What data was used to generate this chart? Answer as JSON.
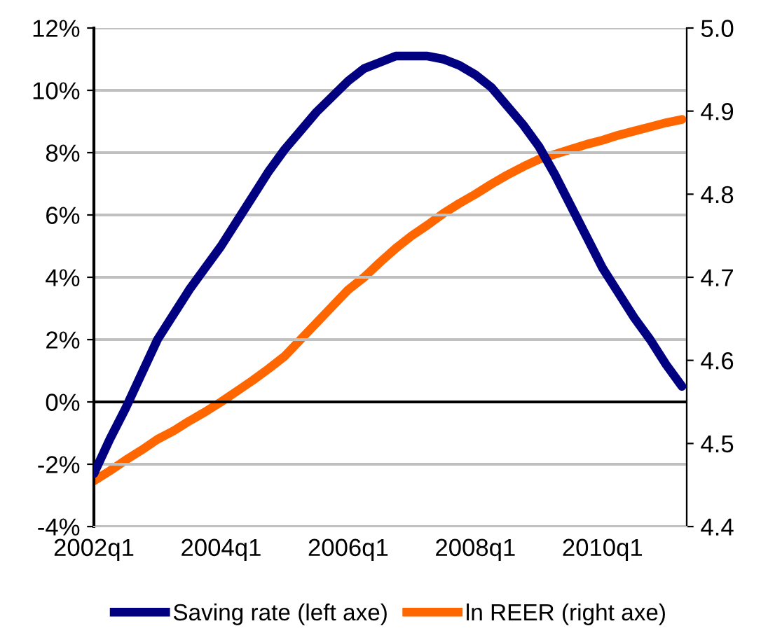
{
  "chart_data": {
    "type": "line",
    "categories": [
      "2002q1",
      null,
      null,
      null,
      null,
      null,
      null,
      null,
      "2004q1",
      null,
      null,
      null,
      null,
      null,
      null,
      null,
      "2006q1",
      null,
      null,
      null,
      null,
      null,
      null,
      null,
      "2008q1",
      null,
      null,
      null,
      null,
      null,
      null,
      null,
      "2010q1",
      null,
      null,
      null,
      null,
      null
    ],
    "series": [
      {
        "name": "Saving rate (left axe)",
        "color": "#000080",
        "values": [
          -2.3,
          -1.2,
          -0.2,
          0.9,
          2.0,
          2.8,
          3.6,
          4.3,
          5.0,
          5.8,
          6.6,
          7.4,
          8.1,
          8.7,
          9.3,
          9.8,
          10.3,
          10.7,
          10.9,
          11.1,
          11.1,
          11.1,
          11.0,
          10.8,
          10.5,
          10.1,
          9.5,
          8.9,
          8.2,
          7.3,
          6.3,
          5.3,
          4.3,
          3.5,
          2.7,
          2.0,
          1.2,
          0.5
        ]
      },
      {
        "name": "ln REER (right axe)",
        "color": "#ff6600",
        "axis": "y2",
        "values": [
          4.455,
          4.467,
          4.48,
          4.492,
          4.505,
          4.515,
          4.527,
          4.538,
          4.55,
          4.563,
          4.576,
          4.59,
          4.605,
          4.625,
          4.645,
          4.665,
          4.685,
          4.7,
          4.718,
          4.735,
          4.75,
          4.763,
          4.777,
          4.789,
          4.8,
          4.812,
          4.823,
          4.833,
          4.842,
          4.848,
          4.854,
          4.86,
          4.865,
          4.871,
          4.876,
          4.881,
          4.886,
          4.89
        ]
      }
    ],
    "ylim": [
      -4,
      12
    ],
    "yticks": [
      {
        "value": -4,
        "label": "-4%"
      },
      {
        "value": -2,
        "label": "-2%"
      },
      {
        "value": 0,
        "label": "0%"
      },
      {
        "value": 2,
        "label": "2%"
      },
      {
        "value": 4,
        "label": "4%"
      },
      {
        "value": 6,
        "label": "6%"
      },
      {
        "value": 8,
        "label": "8%"
      },
      {
        "value": 10,
        "label": "10%"
      },
      {
        "value": 12,
        "label": "12%"
      }
    ],
    "y2lim": [
      4.4,
      5.0
    ],
    "y2ticks": [
      4.4,
      4.5,
      4.6,
      4.7,
      4.8,
      4.9,
      {
        "value": 5.0,
        "label": "5.0"
      }
    ],
    "ref_lines": [
      {
        "axis": "y",
        "value": 0,
        "color": "#000000"
      }
    ],
    "grid": true,
    "legend": "bottom",
    "marker": "none",
    "line_style": "solid"
  }
}
